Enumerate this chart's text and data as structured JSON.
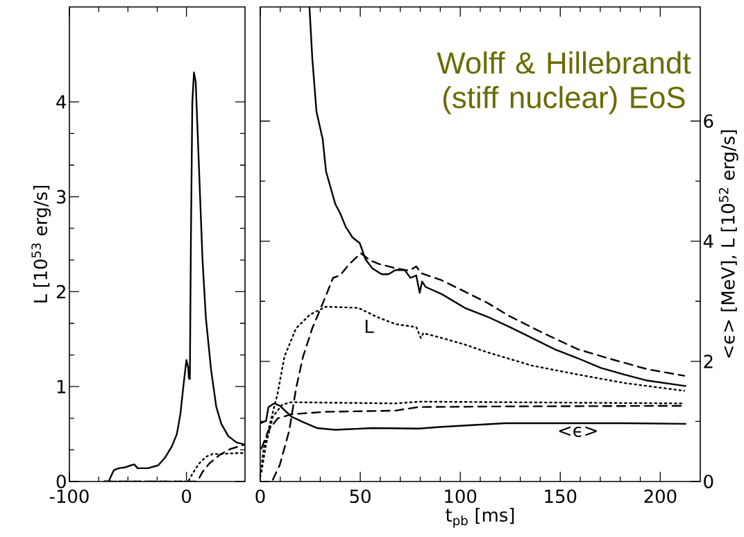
{
  "chart_data": [
    {
      "type": "line",
      "ylabel": "L [10$^{53}$ erg/s]",
      "xlim": [
        -100,
        50
      ],
      "xticks": [
        -100,
        0
      ],
      "ylim": [
        0,
        5
      ],
      "yticks": [
        0,
        1,
        2,
        3,
        4
      ],
      "series": [
        {
          "color": "#000000",
          "line_style": "solid",
          "x": [
            -70,
            -66.5,
            -62,
            -57.7,
            -52,
            -47.5,
            -44.6,
            -41.7,
            -33,
            -24.2,
            -18.4,
            -12.5,
            -8.2,
            -5.2,
            -2.3,
            0,
            1.5,
            2.0,
            2.9,
            3.8,
            5,
            6.4,
            7.9,
            10.8,
            13.7,
            16.6,
            21,
            25.4,
            29.7,
            35.6,
            42.9,
            50
          ],
          "values": [
            0,
            0,
            0.12,
            0.14,
            0.15,
            0.17,
            0.18,
            0.14,
            0.14,
            0.17,
            0.25,
            0.37,
            0.5,
            0.71,
            1.04,
            1.28,
            1.2,
            1.09,
            1.08,
            2.55,
            3.99,
            4.31,
            4.21,
            3.27,
            2.34,
            1.72,
            1.18,
            0.79,
            0.61,
            0.48,
            0.41,
            0.39
          ]
        },
        {
          "color": "#000000",
          "line_style": "dotted",
          "x": [
            -70,
            1.5,
            5,
            10.8,
            16.6,
            22.4,
            31,
            42.9,
            50
          ],
          "values": [
            0,
            0,
            0.08,
            0.19,
            0.26,
            0.29,
            0.29,
            0.3,
            0.3
          ]
        },
        {
          "color": "#000000",
          "line_style": "dashed",
          "x": [
            -70,
            9.3,
            13.7,
            19.5,
            28.3,
            37,
            50
          ],
          "values": [
            0,
            0,
            0.1,
            0.19,
            0.28,
            0.34,
            0.39
          ]
        }
      ]
    },
    {
      "type": "line",
      "xlabel": "t$_{pb}$ [ms]",
      "ylabel": "<ϵ> [MeV], L [10$^{52}$ erg/s]",
      "xlim": [
        0,
        220
      ],
      "xticks": [
        0,
        50,
        100,
        150,
        200
      ],
      "ylim": [
        0,
        7.9
      ],
      "yticks": [
        0,
        2,
        4,
        6
      ],
      "annotations": [
        "Wolff & Hillebrandt (stiff nuclear) EoS",
        "L",
        "<ϵ>"
      ],
      "series": [
        {
          "color": "#000000",
          "line_style": "solid",
          "x": [
            24.6,
            26,
            28.1,
            31.2,
            32.9,
            37.5,
            39.9,
            42.7,
            46.2,
            49.7,
            52.6,
            56,
            60.7,
            64.1,
            67.6,
            72.2,
            75.1,
            78,
            79.7,
            80.9,
            82.6,
            90.7,
            102.3,
            113.8,
            124.2,
            135.8,
            147.3,
            158.9,
            170.4,
            182,
            193.5,
            212.6
          ],
          "values": [
            7.9,
            7.05,
            6.16,
            5.7,
            5.16,
            4.62,
            4.47,
            4.24,
            4.06,
            3.97,
            3.7,
            3.55,
            3.45,
            3.45,
            3.52,
            3.52,
            3.39,
            3.43,
            3.14,
            3.33,
            3.24,
            3.12,
            2.89,
            2.74,
            2.58,
            2.39,
            2.2,
            2.05,
            1.89,
            1.78,
            1.68,
            1.59
          ]
        },
        {
          "color": "#000000",
          "line_style": "dashed",
          "x": [
            6.3,
            9.8,
            14.5,
            17.9,
            21.4,
            26,
            31.8,
            36.4,
            39.9,
            44.5,
            50.3,
            54.9,
            59.5,
            67.6,
            74.5,
            78,
            80.3,
            90.7,
            102.3,
            113.8,
            124.2,
            141.5,
            158.9,
            176.2,
            193.5,
            212
          ],
          "values": [
            0.03,
            0.28,
            0.85,
            1.55,
            2.08,
            2.55,
            3.01,
            3.39,
            3.43,
            3.62,
            3.8,
            3.68,
            3.62,
            3.55,
            3.51,
            3.58,
            3.47,
            3.35,
            3.16,
            2.97,
            2.76,
            2.47,
            2.2,
            2.03,
            1.87,
            1.76
          ]
        },
        {
          "color": "#000000",
          "line_style": "dotted",
          "x": [
            0,
            1.7,
            5.2,
            8.7,
            12.1,
            17.9,
            24.9,
            32.9,
            49.1,
            58.3,
            67.6,
            78,
            80.3,
            81.5,
            90.7,
            102.3,
            112.7,
            135.8,
            158.9,
            182,
            212
          ],
          "values": [
            0.08,
            0.55,
            1.01,
            1.47,
            2.08,
            2.55,
            2.78,
            2.91,
            2.89,
            2.74,
            2.62,
            2.57,
            2.39,
            2.47,
            2.39,
            2.28,
            2.16,
            1.93,
            1.78,
            1.64,
            1.51
          ]
        },
        {
          "color": "#000000",
          "line_style": "solid",
          "x": [
            0,
            2.9,
            4.1,
            6.9,
            9.8,
            15.6,
            21.4,
            28.3,
            37.5,
            56,
            79.1,
            90.7,
            122.5,
            147.3,
            182,
            212.6
          ],
          "values": [
            0.97,
            1.01,
            1.24,
            1.3,
            1.26,
            1.08,
            0.99,
            0.89,
            0.86,
            0.89,
            0.88,
            0.91,
            0.97,
            0.97,
            0.97,
            0.96
          ]
        },
        {
          "color": "#000000",
          "line_style": "dashed",
          "x": [
            0.6,
            4.1,
            8.7,
            15.6,
            32.9,
            67.6,
            79.1,
            122.5,
            212
          ],
          "values": [
            0.55,
            0.85,
            1.05,
            1.12,
            1.16,
            1.18,
            1.24,
            1.25,
            1.26
          ]
        },
        {
          "color": "#000000",
          "line_style": "dotted",
          "x": [
            0.6,
            2.9,
            6.3,
            11,
            15.6,
            67.6,
            80.3,
            122.5,
            212
          ],
          "values": [
            0.16,
            0.62,
            1.08,
            1.28,
            1.32,
            1.3,
            1.33,
            1.32,
            1.3
          ]
        }
      ]
    }
  ]
}
